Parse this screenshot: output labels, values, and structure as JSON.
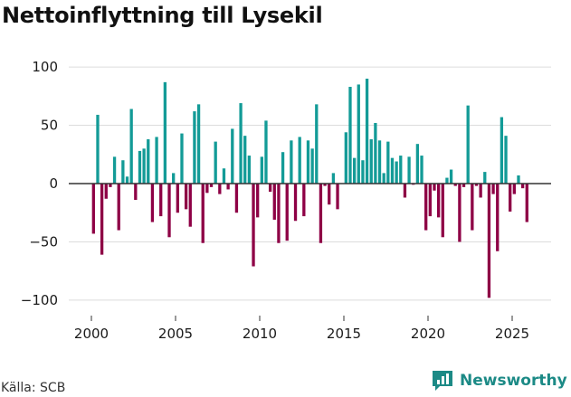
{
  "title": "Nettoinflyttning till Lysekil",
  "source": "Källa: SCB",
  "brand": "Newsworthy",
  "colors": {
    "positive": "#139b97",
    "negative": "#8e0045",
    "grid": "#dcdcdc",
    "zero": "#333333",
    "text": "#1a1a1a",
    "brand": "#1c8a86"
  },
  "chart_data": {
    "type": "bar",
    "title": "Nettoinflyttning till Lysekil",
    "xlabel": "",
    "ylabel": "",
    "ylim": [
      -110,
      100
    ],
    "xlim": [
      1999.25,
      2027.4
    ],
    "yticks": [
      100,
      50,
      0,
      -50,
      -100
    ],
    "ytick_labels": [
      "100",
      "50",
      "0",
      "−50",
      "−100"
    ],
    "xticks": [
      2000,
      2005,
      2010,
      2015,
      2020,
      2025
    ],
    "xtick_labels": [
      "2000",
      "2005",
      "2010",
      "2015",
      "2020",
      "2025"
    ],
    "period": "quarterly",
    "start": 2000,
    "values": [
      -43,
      59,
      -61,
      -13,
      -3,
      23,
      -40,
      20,
      6,
      64,
      -14,
      28,
      30,
      38,
      -33,
      40,
      -28,
      87,
      -46,
      9,
      -25,
      43,
      -22,
      -37,
      62,
      68,
      -51,
      -8,
      -3,
      36,
      -9,
      13,
      -5,
      47,
      -25,
      69,
      41,
      24,
      -71,
      -29,
      23,
      54,
      -7,
      -31,
      -51,
      27,
      -49,
      37,
      -32,
      40,
      -28,
      37,
      30,
      68,
      -51,
      -2,
      -18,
      9,
      -22,
      0,
      44,
      83,
      22,
      85,
      20,
      90,
      38,
      52,
      37,
      9,
      36,
      22,
      19,
      24,
      -12,
      23,
      -1,
      34,
      24,
      -40,
      -28,
      -6,
      -29,
      -46,
      5,
      12,
      -2,
      -50,
      -3,
      67,
      -40,
      -2,
      -12,
      10,
      -98,
      -9,
      -58,
      57,
      41,
      -24,
      -9,
      7,
      -4,
      -33
    ]
  }
}
